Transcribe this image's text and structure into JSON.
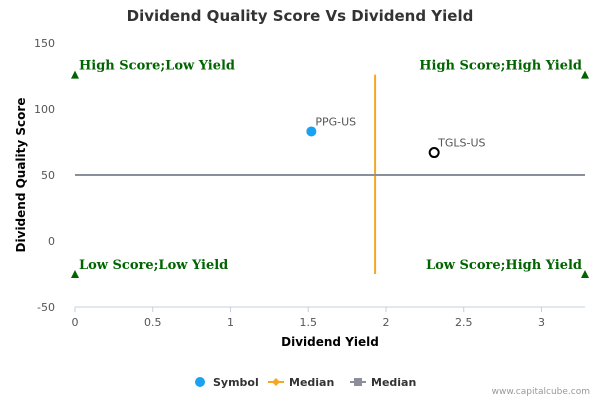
{
  "chart_data": {
    "type": "scatter",
    "title": "Dividend Quality Score Vs Dividend Yield",
    "xlabel": "Dividend Yield",
    "ylabel": "Dividend Quality Score",
    "xlim": [
      0,
      3.28
    ],
    "ylim": [
      -50,
      150
    ],
    "x_ticks": [
      "0",
      "0.5",
      "1",
      "1.5",
      "2",
      "2.5",
      "3"
    ],
    "y_ticks": [
      "-50",
      "0",
      "50",
      "100",
      "150"
    ],
    "grid": false,
    "legend_position": "bottom",
    "points": [
      {
        "label": "PPG-US",
        "x": 1.52,
        "y": 83,
        "style": "filled",
        "color": "#1ba1f2"
      },
      {
        "label": "TGLS-US",
        "x": 2.31,
        "y": 67,
        "style": "hollow",
        "color": "#000000"
      }
    ],
    "median_lines": [
      {
        "orientation": "vertical",
        "x": 1.93,
        "y_from": -25,
        "y_to": 126,
        "color": "#f5a623"
      },
      {
        "orientation": "horizontal",
        "y": 50,
        "color": "#8a8f99"
      }
    ],
    "quadrants": [
      {
        "text": "High Score;Low Yield",
        "marker_x": 0,
        "marker_y": 126,
        "anchor": "start"
      },
      {
        "text": "High Score;High Yield",
        "marker_x": 3.28,
        "marker_y": 126,
        "anchor": "end"
      },
      {
        "text": "Low Score;Low Yield",
        "marker_x": 0,
        "marker_y": -25,
        "anchor": "start"
      },
      {
        "text": "Low Score;High Yield",
        "marker_x": 3.28,
        "marker_y": -25,
        "anchor": "end"
      }
    ],
    "quadrant_color": "#006400",
    "legend": [
      {
        "name": "Symbol",
        "marker": "circle",
        "color": "#1ba1f2"
      },
      {
        "name": "Median",
        "marker": "line-diamond",
        "color": "#f5a623"
      },
      {
        "name": "Median",
        "marker": "line-square",
        "color": "#8a8f99"
      }
    ],
    "credit": "www.capitalcube.com"
  }
}
